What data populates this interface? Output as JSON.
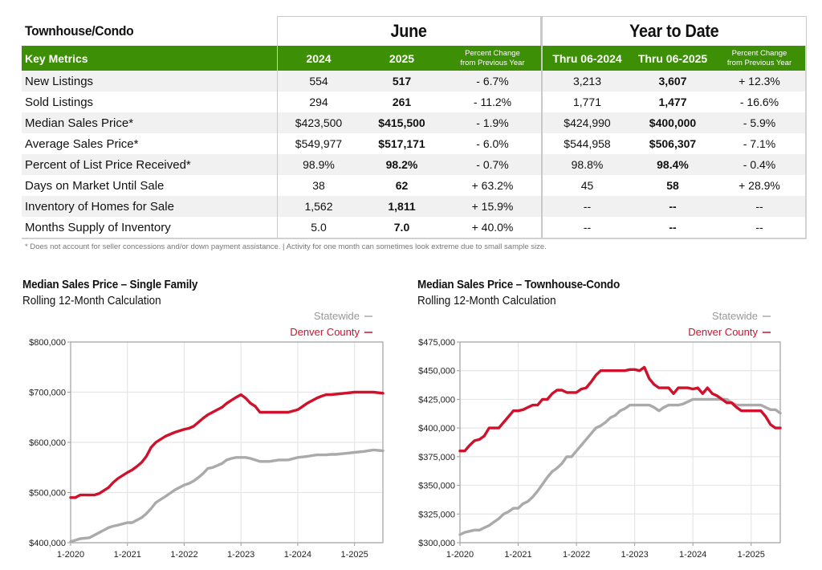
{
  "table": {
    "section_title": "Townhouse/Condo",
    "groups": {
      "june": "June",
      "ytd": "Year to Date"
    },
    "headers": {
      "metric": "Key Metrics",
      "june_2024": "2024",
      "june_2025": "2025",
      "june_pct_line1": "Percent Change",
      "june_pct_line2": "from Previous Year",
      "ytd_2024": "Thru 06-2024",
      "ytd_2025": "Thru 06-2025",
      "ytd_pct_line1": "Percent Change",
      "ytd_pct_line2": "from Previous Year"
    },
    "rows": [
      {
        "metric": "New Listings",
        "june_2024": "554",
        "june_2025": "517",
        "june_pct": "- 6.7%",
        "ytd_2024": "3,213",
        "ytd_2025": "3,607",
        "ytd_pct": "+ 12.3%"
      },
      {
        "metric": "Sold Listings",
        "june_2024": "294",
        "june_2025": "261",
        "june_pct": "- 11.2%",
        "ytd_2024": "1,771",
        "ytd_2025": "1,477",
        "ytd_pct": "- 16.6%"
      },
      {
        "metric": "Median Sales Price*",
        "june_2024": "$423,500",
        "june_2025": "$415,500",
        "june_pct": "- 1.9%",
        "ytd_2024": "$424,990",
        "ytd_2025": "$400,000",
        "ytd_pct": "- 5.9%"
      },
      {
        "metric": "Average Sales Price*",
        "june_2024": "$549,977",
        "june_2025": "$517,171",
        "june_pct": "- 6.0%",
        "ytd_2024": "$544,958",
        "ytd_2025": "$506,307",
        "ytd_pct": "- 7.1%"
      },
      {
        "metric": "Percent of List Price Received*",
        "june_2024": "98.9%",
        "june_2025": "98.2%",
        "june_pct": "- 0.7%",
        "ytd_2024": "98.8%",
        "ytd_2025": "98.4%",
        "ytd_pct": "- 0.4%"
      },
      {
        "metric": "Days on Market Until Sale",
        "june_2024": "38",
        "june_2025": "62",
        "june_pct": "+ 63.2%",
        "ytd_2024": "45",
        "ytd_2025": "58",
        "ytd_pct": "+ 28.9%"
      },
      {
        "metric": "Inventory of Homes for Sale",
        "june_2024": "1,562",
        "june_2025": "1,811",
        "june_pct": "+ 15.9%",
        "ytd_2024": "--",
        "ytd_2025": "--",
        "ytd_pct": "--"
      },
      {
        "metric": "Months Supply of Inventory",
        "june_2024": "5.0",
        "june_2025": "7.0",
        "june_pct": "+ 40.0%",
        "ytd_2024": "--",
        "ytd_2025": "--",
        "ytd_pct": "--"
      }
    ],
    "footnote": "* Does not account for seller concessions and/or down payment assistance.  |  Activity for one month can sometimes look extreme due to small sample size.",
    "colors": {
      "header_bg": "#3d8f05",
      "header_text": "#ffffff",
      "alt_row": "#f1f1f1"
    }
  },
  "chart_data": [
    {
      "type": "line",
      "title": "Median Sales Price – Single Family",
      "subtitle": "Rolling 12-Month Calculation",
      "xlabel": "",
      "ylabel": "",
      "x_tick_labels": [
        "1-2020",
        "1-2021",
        "1-2022",
        "1-2023",
        "1-2024",
        "1-2025"
      ],
      "y_tick_labels": [
        "$400,000",
        "$500,000",
        "$600,000",
        "$700,000",
        "$800,000"
      ],
      "y_ticks": [
        400000,
        500000,
        600000,
        700000,
        800000
      ],
      "ylim": [
        400000,
        800000
      ],
      "x_range_months": [
        0,
        66
      ],
      "grid": true,
      "legend_position": "top-right",
      "x_months": [
        0,
        1,
        2,
        4,
        5,
        6,
        8,
        9,
        10,
        12,
        13,
        14,
        15,
        16,
        17,
        18,
        20,
        22,
        24,
        25,
        26,
        27,
        28,
        29,
        30,
        32,
        33,
        34,
        35,
        36,
        37,
        38,
        39,
        40,
        42,
        44,
        46,
        48,
        50,
        52,
        53,
        54,
        55,
        56,
        58,
        60,
        62,
        64,
        66
      ],
      "series": [
        {
          "name": "Statewide",
          "color": "#aaaaaa",
          "values": [
            402000,
            405000,
            408000,
            410000,
            415000,
            420000,
            430000,
            433000,
            435000,
            440000,
            440000,
            445000,
            450000,
            458000,
            468000,
            480000,
            492000,
            505000,
            515000,
            518000,
            523000,
            530000,
            538000,
            548000,
            550000,
            558000,
            565000,
            568000,
            570000,
            570000,
            570000,
            568000,
            565000,
            562000,
            562000,
            565000,
            565000,
            570000,
            572000,
            575000,
            575000,
            575000,
            576000,
            576000,
            578000,
            580000,
            582000,
            585000,
            583000
          ]
        },
        {
          "name": "Denver County",
          "color": "#d0112b",
          "values": [
            490000,
            490000,
            495000,
            495000,
            495000,
            498000,
            510000,
            520000,
            528000,
            540000,
            545000,
            552000,
            560000,
            572000,
            590000,
            600000,
            612000,
            620000,
            626000,
            628000,
            632000,
            640000,
            648000,
            655000,
            660000,
            670000,
            678000,
            684000,
            690000,
            695000,
            688000,
            678000,
            672000,
            660000,
            660000,
            660000,
            660000,
            665000,
            678000,
            688000,
            692000,
            695000,
            695000,
            696000,
            698000,
            700000,
            700000,
            700000,
            698000
          ]
        }
      ]
    },
    {
      "type": "line",
      "title": "Median Sales Price – Townhouse-Condo",
      "subtitle": "Rolling 12-Month Calculation",
      "xlabel": "",
      "ylabel": "",
      "x_tick_labels": [
        "1-2020",
        "1-2021",
        "1-2022",
        "1-2023",
        "1-2024",
        "1-2025"
      ],
      "y_tick_labels": [
        "$300,000",
        "$325,000",
        "$350,000",
        "$375,000",
        "$400,000",
        "$425,000",
        "$450,000",
        "$475,000"
      ],
      "y_ticks": [
        300000,
        325000,
        350000,
        375000,
        400000,
        425000,
        450000,
        475000
      ],
      "ylim": [
        300000,
        475000
      ],
      "x_range_months": [
        0,
        66
      ],
      "grid": true,
      "legend_position": "top-right",
      "x_months": [
        0,
        1,
        2,
        3,
        4,
        5,
        6,
        7,
        8,
        9,
        10,
        11,
        12,
        13,
        14,
        15,
        16,
        17,
        18,
        19,
        20,
        21,
        22,
        23,
        24,
        25,
        26,
        27,
        28,
        29,
        30,
        31,
        32,
        33,
        34,
        35,
        36,
        37,
        38,
        39,
        40,
        41,
        42,
        43,
        44,
        45,
        46,
        47,
        48,
        49,
        50,
        51,
        52,
        53,
        54,
        55,
        56,
        57,
        58,
        59,
        60,
        61,
        62,
        63,
        64,
        65,
        66
      ],
      "series": [
        {
          "name": "Statewide",
          "color": "#aaaaaa",
          "values": [
            307000,
            309000,
            310000,
            311000,
            311000,
            313000,
            315000,
            318000,
            321000,
            325000,
            327000,
            330000,
            330000,
            334000,
            336000,
            340000,
            345000,
            351000,
            357000,
            362000,
            365000,
            369000,
            375000,
            375000,
            380000,
            385000,
            390000,
            395000,
            400000,
            402000,
            405000,
            409000,
            411000,
            415000,
            417000,
            420000,
            420000,
            420000,
            420000,
            420000,
            418000,
            415000,
            418000,
            420000,
            420000,
            420000,
            421000,
            423000,
            425000,
            425000,
            425000,
            425000,
            425000,
            425000,
            425000,
            425000,
            422000,
            420000,
            420000,
            420000,
            420000,
            420000,
            420000,
            418000,
            416000,
            416000,
            413000
          ]
        },
        {
          "name": "Denver County",
          "color": "#d0112b",
          "values": [
            380000,
            380000,
            385000,
            389000,
            390000,
            393000,
            400000,
            400000,
            400000,
            405000,
            410000,
            415000,
            415000,
            416000,
            418000,
            420000,
            420000,
            425000,
            425000,
            430000,
            433000,
            433000,
            431000,
            431000,
            431000,
            434000,
            435000,
            440000,
            446000,
            450000,
            450000,
            450000,
            450000,
            450000,
            450000,
            451000,
            451000,
            450000,
            453000,
            443000,
            438000,
            435000,
            435000,
            435000,
            430000,
            435000,
            435000,
            435000,
            434000,
            435000,
            430000,
            435000,
            430000,
            428000,
            425000,
            422000,
            422000,
            418000,
            415000,
            415000,
            415000,
            415000,
            415000,
            410000,
            403000,
            400000,
            400000
          ]
        }
      ]
    }
  ]
}
